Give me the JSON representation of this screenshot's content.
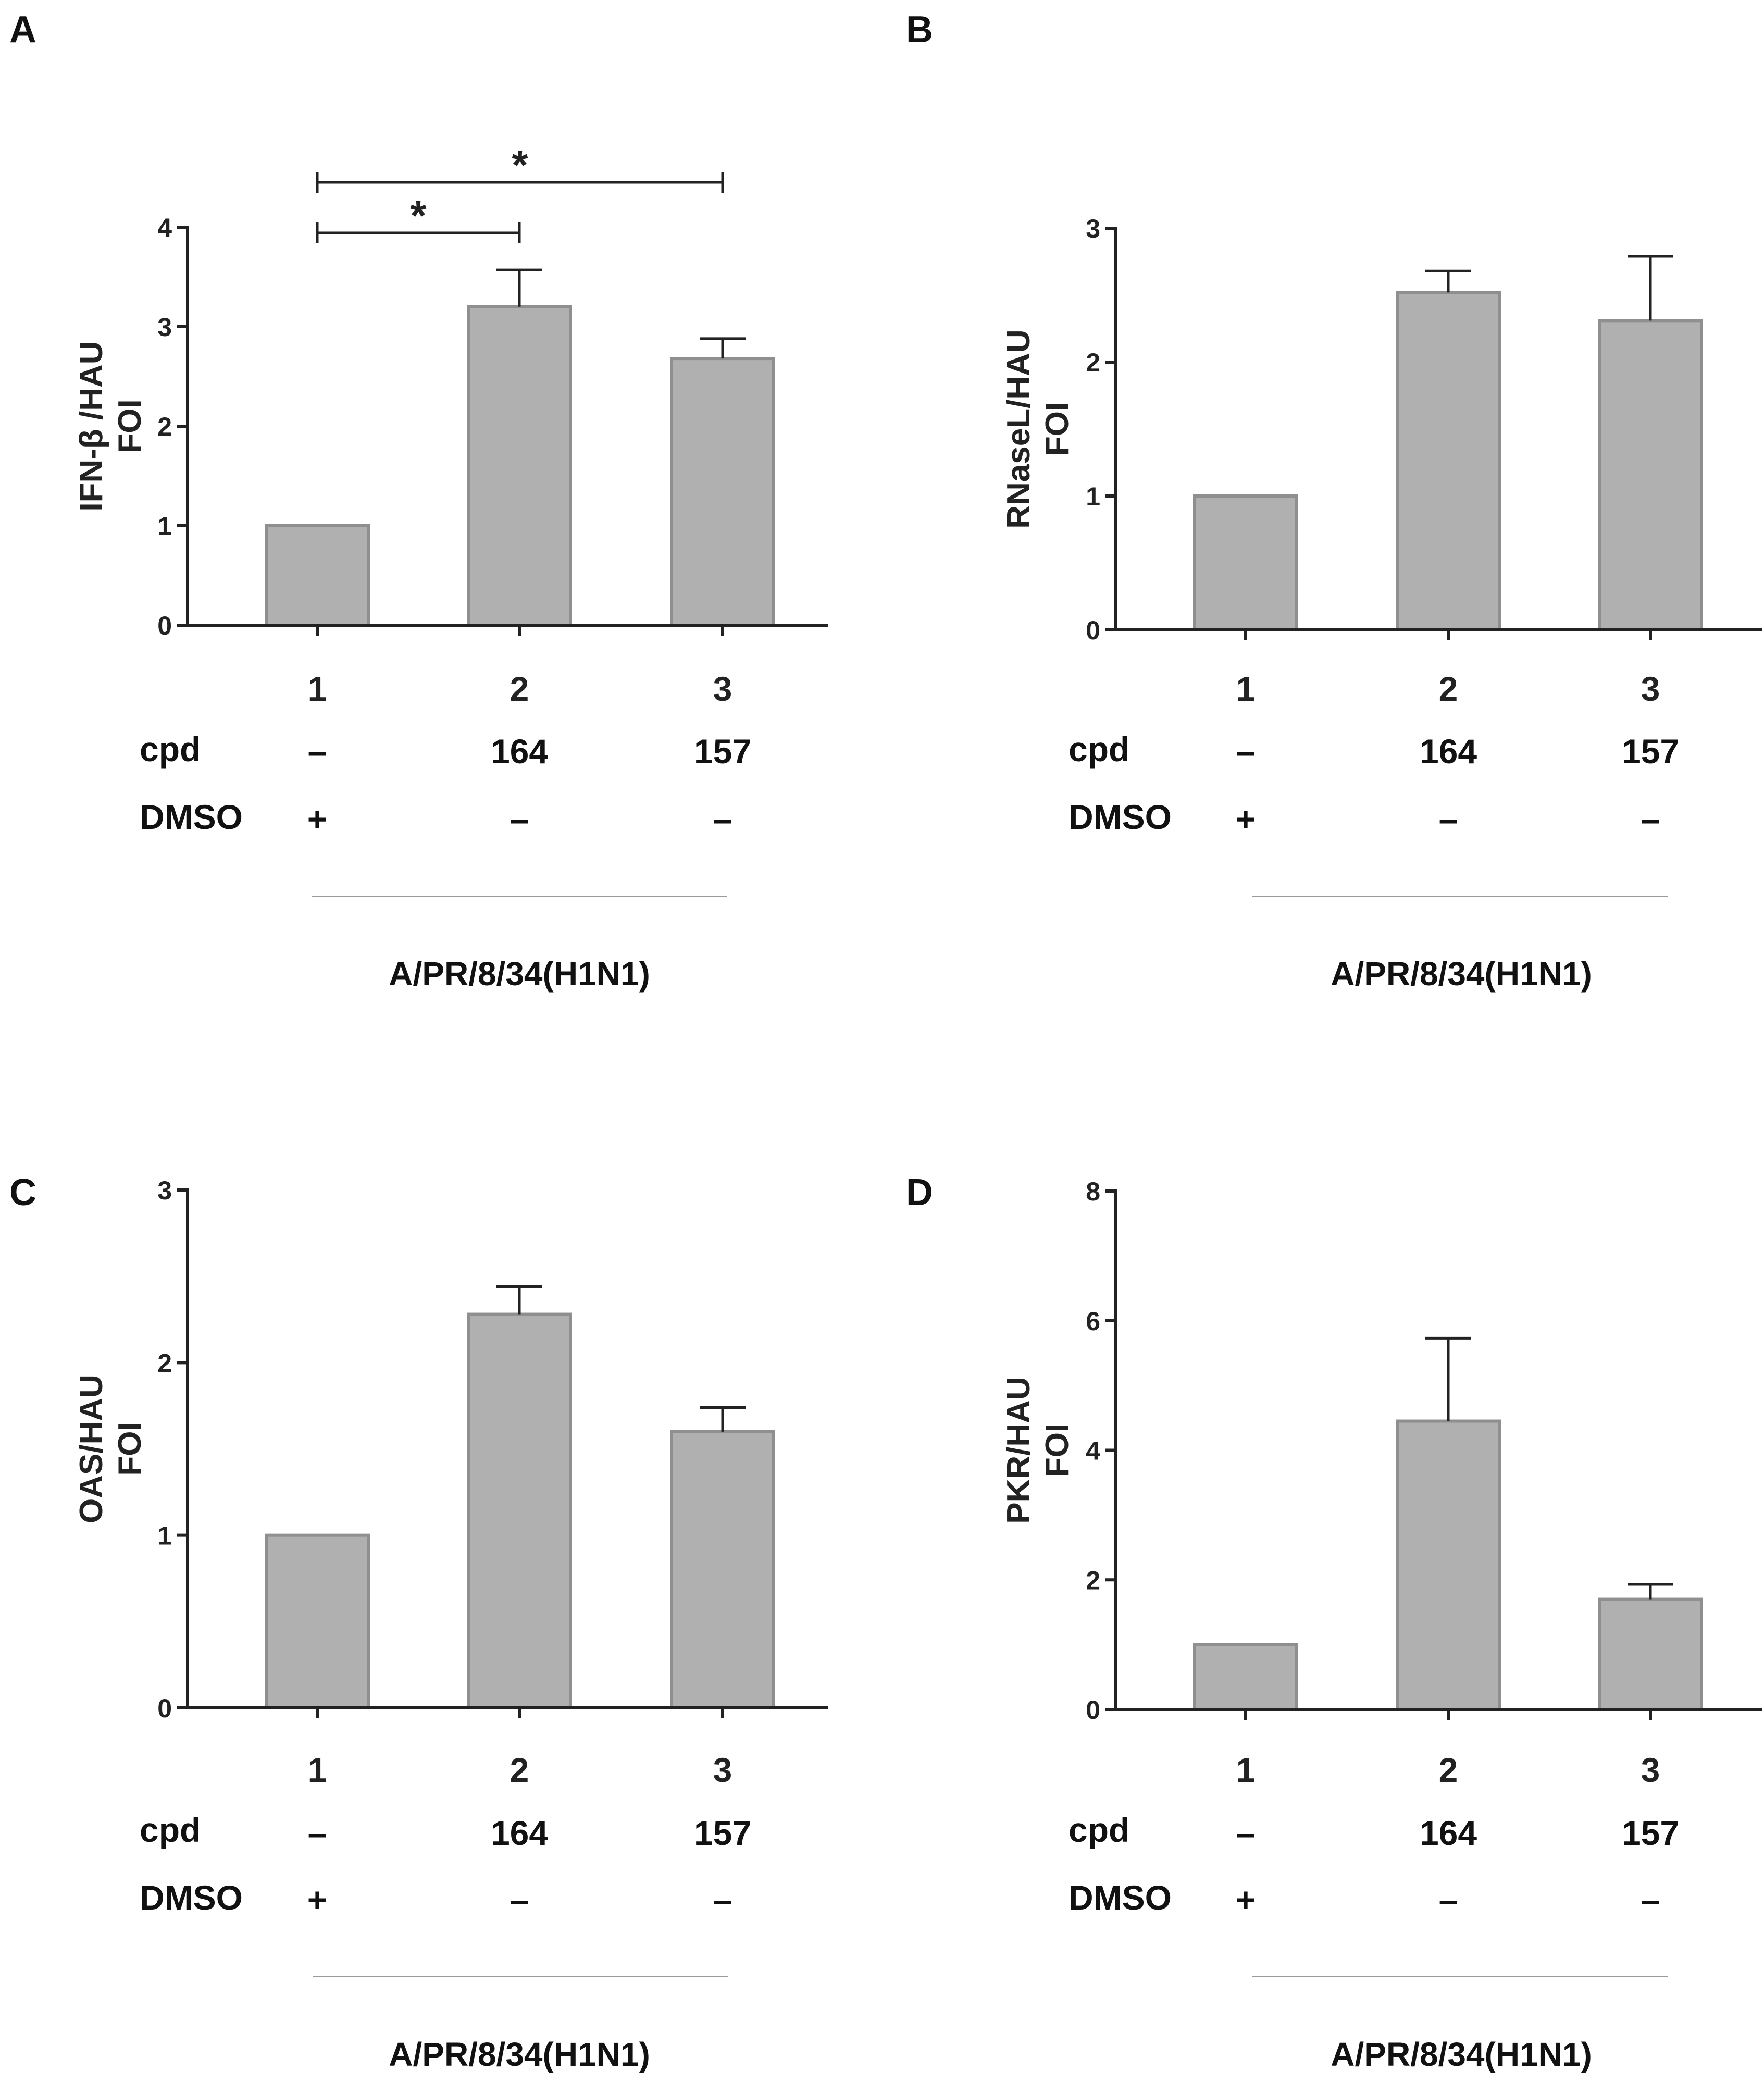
{
  "chart_data": [
    {
      "type": "bar",
      "panel_letter": "A",
      "ylabel_lines": [
        "IFN-β /HAU",
        "FOI"
      ],
      "ylim": [
        0,
        4
      ],
      "yticks": [
        0,
        1,
        2,
        3,
        4
      ],
      "categories": [
        "1",
        "2",
        "3"
      ],
      "values": [
        1.0,
        3.2,
        2.68
      ],
      "errors": [
        0,
        0.37,
        0.2
      ],
      "significance": [
        {
          "from": 0,
          "to": 1,
          "label": "*"
        },
        {
          "from": 0,
          "to": 2,
          "label": "*"
        }
      ]
    },
    {
      "type": "bar",
      "panel_letter": "B",
      "ylabel_lines": [
        "RNaseL/HAU",
        "FOI"
      ],
      "ylim": [
        0,
        3
      ],
      "yticks": [
        0,
        1,
        2,
        3
      ],
      "categories": [
        "1",
        "2",
        "3"
      ],
      "values": [
        1.0,
        2.52,
        2.31
      ],
      "errors": [
        0,
        0.16,
        0.48
      ],
      "significance": []
    },
    {
      "type": "bar",
      "panel_letter": "C",
      "ylabel_lines": [
        "OAS/HAU",
        "FOI"
      ],
      "ylim": [
        0,
        3
      ],
      "yticks": [
        0,
        1,
        2,
        3
      ],
      "categories": [
        "1",
        "2",
        "3"
      ],
      "values": [
        1.0,
        2.28,
        1.6
      ],
      "errors": [
        0,
        0.16,
        0.14
      ],
      "significance": []
    },
    {
      "type": "bar",
      "panel_letter": "D",
      "ylabel_lines": [
        "PKR/HAU",
        "FOI"
      ],
      "ylim": [
        0,
        8
      ],
      "yticks": [
        0,
        2,
        4,
        6,
        8
      ],
      "categories": [
        "1",
        "2",
        "3"
      ],
      "values": [
        1.0,
        4.45,
        1.7
      ],
      "errors": [
        0,
        1.28,
        0.23
      ],
      "significance": []
    }
  ],
  "treatment_table": {
    "cpd_label": "cpd",
    "dmso_label": "DMSO",
    "cpd_values": [
      "–",
      "164",
      "157"
    ],
    "dmso_values": [
      "+",
      "–",
      "–"
    ],
    "virus_label": "A/PR/8/34(H1N1)"
  },
  "colors": {
    "bar_fill": "#b0b0b0",
    "bar_stroke": "#8f8f8f",
    "axis": "#222222"
  }
}
